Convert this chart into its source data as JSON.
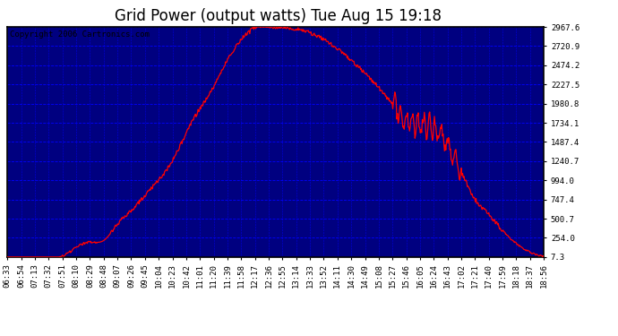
{
  "title": "Grid Power (output watts) Tue Aug 15 19:18",
  "copyright": "Copyright 2006 Cartronics.com",
  "background_color": "#000080",
  "border_color": "#000000",
  "line_color": "#ff0000",
  "grid_h_color": "#0000ff",
  "grid_v_color": "#0000cd",
  "ytick_color": "#000000",
  "xtick_color": "#000000",
  "yticks": [
    7.3,
    254.0,
    500.7,
    747.4,
    994.0,
    1240.7,
    1487.4,
    1734.1,
    1980.8,
    2227.5,
    2474.2,
    2720.9,
    2967.6
  ],
  "xtick_labels": [
    "06:33",
    "06:54",
    "07:13",
    "07:32",
    "07:51",
    "08:10",
    "08:29",
    "08:48",
    "09:07",
    "09:26",
    "09:45",
    "10:04",
    "10:23",
    "10:42",
    "11:01",
    "11:20",
    "11:39",
    "11:58",
    "12:17",
    "12:36",
    "12:55",
    "13:14",
    "13:33",
    "13:52",
    "14:11",
    "14:30",
    "14:49",
    "15:08",
    "15:27",
    "15:46",
    "16:05",
    "16:24",
    "16:43",
    "17:02",
    "17:21",
    "17:40",
    "17:59",
    "18:18",
    "18:37",
    "18:56"
  ],
  "ymin": 7.3,
  "ymax": 2967.6,
  "title_fontsize": 12,
  "axis_label_fontsize": 6.5,
  "copyright_fontsize": 6.5,
  "key_points": {
    "t_indices": [
      0,
      1,
      2,
      3,
      4,
      5,
      6,
      7,
      8,
      9,
      10,
      11,
      12,
      13,
      14,
      15,
      16,
      17,
      18,
      19,
      20,
      21,
      22,
      23,
      24,
      25,
      26,
      27,
      28,
      29,
      30,
      31,
      32,
      33,
      34,
      35,
      36,
      37,
      38,
      39
    ],
    "y_vals": [
      7,
      7,
      7,
      7,
      20,
      130,
      200,
      220,
      430,
      600,
      800,
      1000,
      1250,
      1600,
      1920,
      2200,
      2550,
      2800,
      2960,
      2968,
      2960,
      2940,
      2900,
      2820,
      2700,
      2550,
      2390,
      2200,
      1980,
      1760,
      1700,
      1680,
      1450,
      1100,
      750,
      550,
      350,
      180,
      70,
      15
    ]
  }
}
